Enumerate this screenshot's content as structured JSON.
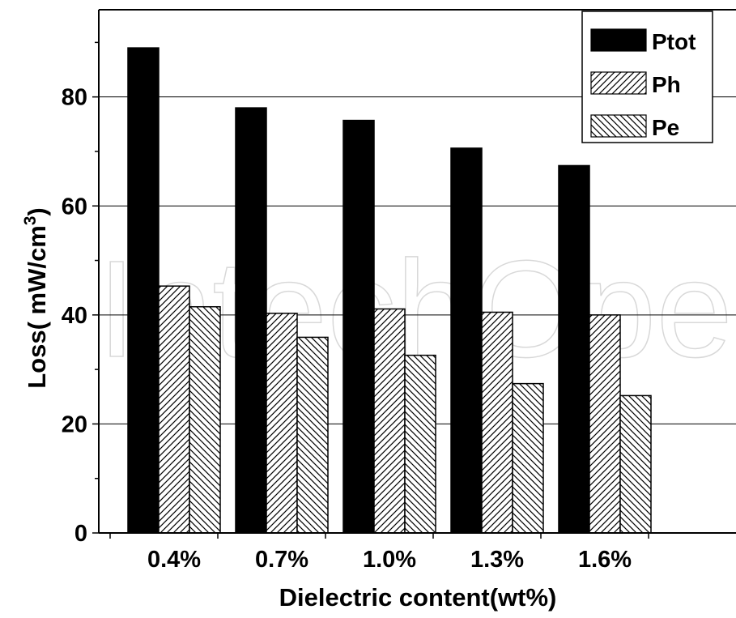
{
  "chart_data": {
    "type": "bar",
    "title": "",
    "xlabel": "Dielectric content(wt%)",
    "ylabel": "Loss( mW/cm",
    "ylabel_superscript": "3",
    "ylabel_suffix": ")",
    "ylim": [
      0,
      96
    ],
    "yticks": [
      0,
      20,
      40,
      60,
      80
    ],
    "grid": "horizontal",
    "legend_position": "top-right",
    "categories": [
      "0.4%",
      "0.7%",
      "1.0%",
      "1.3%",
      "1.6%"
    ],
    "series": [
      {
        "name": "Ptot",
        "fill": "solid",
        "color": "#000000",
        "values": [
          89.0,
          78.0,
          75.7,
          70.6,
          67.4
        ]
      },
      {
        "name": "Ph",
        "fill": "hatch-forward",
        "color": "#000000",
        "values": [
          45.3,
          40.3,
          41.1,
          40.5,
          40.0
        ]
      },
      {
        "name": "Pe",
        "fill": "hatch-backward",
        "color": "#000000",
        "values": [
          41.5,
          35.9,
          32.6,
          27.4,
          25.2
        ]
      }
    ],
    "watermark": "IntechOpen"
  }
}
